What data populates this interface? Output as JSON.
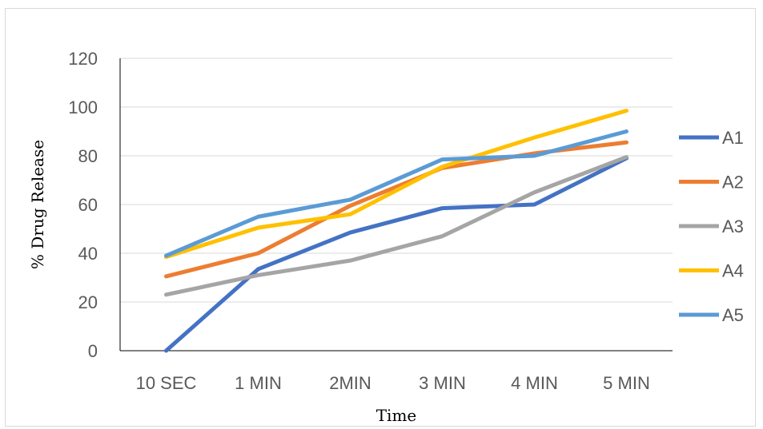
{
  "chart_data": {
    "type": "line",
    "categories": [
      "10 SEC",
      "1 MIN",
      "2MIN",
      "3 MIN",
      "4 MIN",
      "5 MIN"
    ],
    "series": [
      {
        "name": "A1",
        "color": "#4472C4",
        "values": [
          0,
          33.5,
          48.5,
          58.5,
          60,
          79
        ]
      },
      {
        "name": "A2",
        "color": "#ED7D31",
        "values": [
          30.5,
          40,
          59.5,
          75,
          81,
          85.5
        ]
      },
      {
        "name": "A3",
        "color": "#A5A5A5",
        "values": [
          23,
          31,
          37,
          47,
          65,
          79.5
        ]
      },
      {
        "name": "A4",
        "color": "#FFC000",
        "values": [
          38.5,
          50.5,
          56,
          75.5,
          87.5,
          98.5
        ]
      },
      {
        "name": "A5",
        "color": "#5B9BD5",
        "values": [
          39,
          55,
          62,
          78.5,
          80,
          90
        ]
      }
    ],
    "xlabel": "Time",
    "ylabel": "% Drug  Release",
    "ylim": [
      0,
      120
    ],
    "yticks": [
      0,
      20,
      40,
      60,
      80,
      100,
      120
    ],
    "grid": true,
    "legend": "right"
  }
}
